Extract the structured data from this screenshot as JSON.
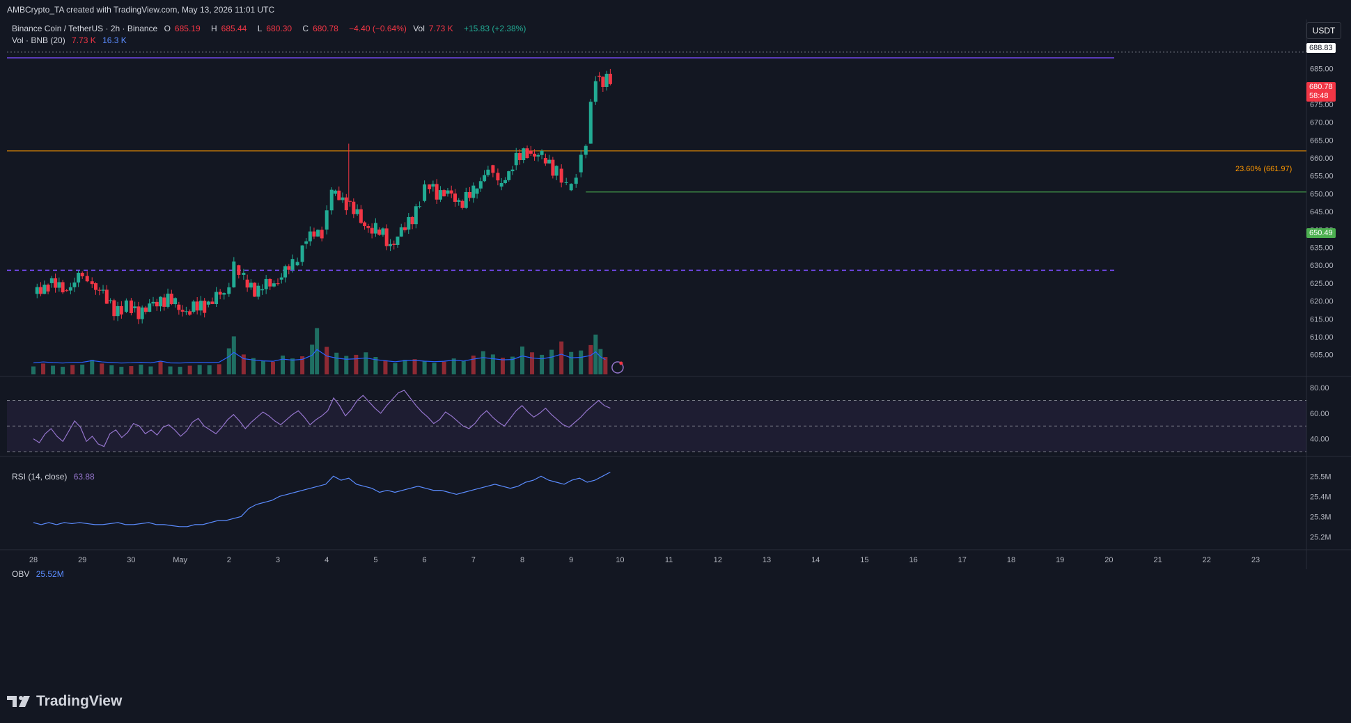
{
  "attribution": "AMBCrypto_TA created with TradingView.com, May 13, 2026 11:01 UTC",
  "legend": {
    "symbol": "Binance Coin / TetherUS · 2h · Binance",
    "o_label": "O",
    "o": "685.19",
    "h_label": "H",
    "h": "685.44",
    "l_label": "L",
    "l": "680.30",
    "c_label": "C",
    "c": "680.78",
    "chg": "−4.40 (−0.64%)",
    "vol_label": "Vol",
    "vol": "7.73 K",
    "vol_chg": "+15.83 (+2.38%)",
    "vol_line": "Vol · BNB (20)",
    "vol_a": "7.73 K",
    "vol_b": "16.3 K"
  },
  "currency_button": "USDT",
  "price_tags": {
    "top": "688.83",
    "last_price": "680.78",
    "countdown": "58:48",
    "support": "650.49",
    "fib": "23.60% (661.97)"
  },
  "rsi_legend": {
    "label": "RSI (14, close)",
    "value": "63.88"
  },
  "obv_legend": {
    "label": "OBV",
    "value": "25.52M"
  },
  "brand": "TradingView",
  "colors": {
    "up": "#22ab94",
    "down": "#f23645",
    "rsi": "#9575cd",
    "obv": "#5b8cff",
    "fib": "#ff9800",
    "resistance": "#7c4dff",
    "support": "#4caf50"
  },
  "chart_data": [
    {
      "type": "candlestick",
      "interval": "2h",
      "y_ticks": [
        "685.00",
        "680.00",
        "675.00",
        "670.00",
        "665.00",
        "660.00",
        "655.00",
        "650.00",
        "645.00",
        "640.00",
        "635.00",
        "630.00",
        "625.00",
        "620.00",
        "615.00",
        "610.00",
        "605.00"
      ],
      "ylim": [
        603,
        689
      ],
      "x_ticks": [
        "28",
        "29",
        "30",
        "May",
        "2",
        "3",
        "4",
        "5",
        "6",
        "7",
        "8",
        "9",
        "10",
        "11",
        "12",
        "13",
        "14",
        "15",
        "16",
        "17",
        "18",
        "19",
        "20",
        "21",
        "22",
        "23"
      ],
      "horizontal_levels": [
        {
          "name": "resistance",
          "value": 688
        },
        {
          "name": "fib_23.6",
          "value": 661.97
        },
        {
          "name": "support",
          "value": 650.49
        },
        {
          "name": "dashed_level",
          "value": 628.6
        }
      ],
      "close_path": [
        [
          0,
          622
        ],
        [
          0.3,
          625
        ],
        [
          0.6,
          623
        ],
        [
          1.0,
          627
        ],
        [
          1.2,
          625
        ],
        [
          1.5,
          620
        ],
        [
          1.8,
          617
        ],
        [
          2.0,
          618
        ],
        [
          2.3,
          617
        ],
        [
          2.6,
          621
        ],
        [
          2.9,
          619
        ],
        [
          3.2,
          617
        ],
        [
          3.5,
          619
        ],
        [
          3.9,
          622
        ],
        [
          4.1,
          630
        ],
        [
          4.3,
          626
        ],
        [
          4.6,
          623
        ],
        [
          5.0,
          626
        ],
        [
          5.3,
          630
        ],
        [
          5.5,
          636
        ],
        [
          5.9,
          640
        ],
        [
          6.1,
          650
        ],
        [
          6.4,
          648
        ],
        [
          6.7,
          642
        ],
        [
          7.0,
          640
        ],
        [
          7.3,
          636
        ],
        [
          7.6,
          640
        ],
        [
          7.9,
          648
        ],
        [
          8.1,
          652
        ],
        [
          8.4,
          650
        ],
        [
          8.7,
          648
        ],
        [
          9.0,
          650
        ],
        [
          9.3,
          658
        ],
        [
          9.5,
          652
        ],
        [
          9.8,
          658
        ],
        [
          10.1,
          662
        ],
        [
          10.4,
          660
        ],
        [
          10.7,
          657
        ],
        [
          10.9,
          651
        ],
        [
          11.1,
          656
        ],
        [
          11.3,
          664
        ],
        [
          11.5,
          683
        ],
        [
          11.8,
          681
        ]
      ],
      "volume_bars": [
        [
          0,
          2.2
        ],
        [
          0.2,
          3
        ],
        [
          0.4,
          2.4
        ],
        [
          0.6,
          2.1
        ],
        [
          0.8,
          2.6
        ],
        [
          1,
          2.7
        ],
        [
          1.2,
          4
        ],
        [
          1.4,
          3
        ],
        [
          1.6,
          2.5
        ],
        [
          1.8,
          2.1
        ],
        [
          2,
          2.3
        ],
        [
          2.2,
          2.7
        ],
        [
          2.4,
          2.2
        ],
        [
          2.6,
          3.6
        ],
        [
          2.8,
          2.2
        ],
        [
          3,
          2.1
        ],
        [
          3.2,
          2.4
        ],
        [
          3.4,
          2.6
        ],
        [
          3.6,
          2.5
        ],
        [
          3.8,
          2.8
        ],
        [
          4.0,
          7.2
        ],
        [
          4.1,
          10.5
        ],
        [
          4.3,
          5.5
        ],
        [
          4.5,
          4.5
        ],
        [
          4.7,
          3.8
        ],
        [
          4.9,
          3.5
        ],
        [
          5.1,
          5.2
        ],
        [
          5.3,
          4.4
        ],
        [
          5.5,
          5
        ],
        [
          5.7,
          8.2
        ],
        [
          5.8,
          12.8
        ],
        [
          6.0,
          7.6
        ],
        [
          6.2,
          6
        ],
        [
          6.4,
          5.1
        ],
        [
          6.6,
          5.4
        ],
        [
          6.8,
          6.1
        ],
        [
          7.0,
          4.8
        ],
        [
          7.2,
          3.9
        ],
        [
          7.4,
          3.1
        ],
        [
          7.6,
          4
        ],
        [
          7.8,
          4.2
        ],
        [
          8.0,
          3.6
        ],
        [
          8.2,
          3.2
        ],
        [
          8.4,
          3.5
        ],
        [
          8.6,
          4.4
        ],
        [
          8.8,
          3.7
        ],
        [
          9.0,
          5.2
        ],
        [
          9.2,
          6.4
        ],
        [
          9.4,
          5.5
        ],
        [
          9.6,
          4.6
        ],
        [
          9.8,
          4.9
        ],
        [
          10.0,
          7.7
        ],
        [
          10.2,
          6.1
        ],
        [
          10.4,
          5.4
        ],
        [
          10.6,
          6.8
        ],
        [
          10.8,
          9.1
        ],
        [
          11.0,
          6.2
        ],
        [
          11.2,
          6.6
        ],
        [
          11.4,
          8.1
        ],
        [
          11.5,
          11
        ],
        [
          11.6,
          7
        ],
        [
          11.7,
          4.8
        ]
      ]
    },
    {
      "type": "line",
      "name": "RSI",
      "ylim": [
        30,
        85
      ],
      "y_ticks": [
        "80.00",
        "60.00",
        "40.00"
      ],
      "bands": [
        70,
        50,
        30
      ],
      "values": [
        40,
        37,
        44,
        48,
        42,
        38,
        46,
        54,
        49,
        38,
        42,
        36,
        34,
        44,
        47,
        41,
        45,
        52,
        50,
        44,
        47,
        43,
        49,
        51,
        47,
        42,
        46,
        53,
        56,
        50,
        47,
        44,
        49,
        55,
        59,
        54,
        48,
        53,
        57,
        61,
        58,
        54,
        51,
        55,
        59,
        62,
        57,
        51,
        55,
        58,
        62,
        72,
        66,
        58,
        63,
        70,
        74,
        69,
        64,
        60,
        66,
        71,
        76,
        78,
        72,
        66,
        61,
        57,
        52,
        55,
        61,
        58,
        54,
        50,
        48,
        52,
        58,
        62,
        57,
        53,
        50,
        56,
        62,
        66,
        61,
        57,
        60,
        64,
        59,
        55,
        51,
        49,
        53,
        57,
        62,
        66,
        70,
        66,
        64
      ]
    },
    {
      "type": "line",
      "name": "OBV",
      "y_ticks": [
        "25.5M",
        "25.4M",
        "25.3M",
        "25.2M"
      ],
      "ylim": [
        25.17,
        25.57
      ],
      "values": [
        25.27,
        25.26,
        25.27,
        25.26,
        25.27,
        25.265,
        25.27,
        25.265,
        25.26,
        25.26,
        25.265,
        25.27,
        25.26,
        25.26,
        25.265,
        25.27,
        25.26,
        25.26,
        25.255,
        25.25,
        25.25,
        25.26,
        25.26,
        25.27,
        25.28,
        25.28,
        25.29,
        25.3,
        25.34,
        25.36,
        25.37,
        25.38,
        25.4,
        25.41,
        25.42,
        25.43,
        25.44,
        25.45,
        25.46,
        25.5,
        25.48,
        25.49,
        25.46,
        25.45,
        25.44,
        25.42,
        25.43,
        25.42,
        25.43,
        25.44,
        25.45,
        25.44,
        25.43,
        25.43,
        25.42,
        25.41,
        25.42,
        25.43,
        25.44,
        25.45,
        25.46,
        25.45,
        25.44,
        25.45,
        25.47,
        25.48,
        25.5,
        25.48,
        25.47,
        25.46,
        25.48,
        25.49,
        25.47,
        25.48,
        25.5,
        25.52
      ]
    }
  ]
}
